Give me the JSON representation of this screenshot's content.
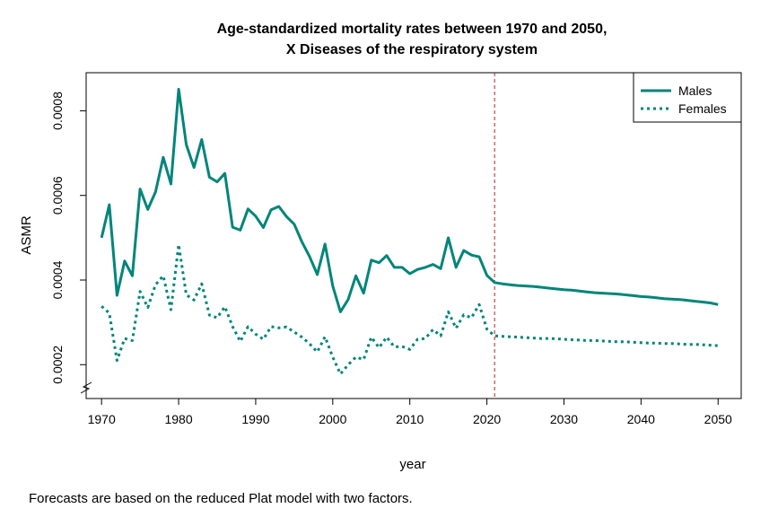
{
  "chart_data": {
    "type": "line",
    "title_line1": "Age-standardized mortality rates between 1970 and 2050,",
    "title_line2": "X Diseases of the respiratory system",
    "xlabel": "year",
    "ylabel": "ASMR",
    "xlim": [
      1968,
      2053
    ],
    "ylim": [
      0.00012,
      0.00089
    ],
    "x_ticks": [
      1970,
      1980,
      1990,
      2000,
      2010,
      2020,
      2030,
      2040,
      2050
    ],
    "y_ticks": [
      0.0002,
      0.0004,
      0.0006,
      0.0008
    ],
    "y_tick_labels": [
      "0.0002",
      "0.0004",
      "0.0006",
      "0.0008"
    ],
    "axis_break": true,
    "forecast_start_line": 2021,
    "legend_position": "top-right",
    "series": [
      {
        "name": "Males",
        "style": "solid",
        "color": "#00857a",
        "x": [
          1970,
          1971,
          1972,
          1973,
          1974,
          1975,
          1976,
          1977,
          1978,
          1979,
          1980,
          1981,
          1982,
          1983,
          1984,
          1985,
          1986,
          1987,
          1988,
          1989,
          1990,
          1991,
          1992,
          1993,
          1994,
          1995,
          1996,
          1997,
          1998,
          1999,
          2000,
          2001,
          2002,
          2003,
          2004,
          2005,
          2006,
          2007,
          2008,
          2009,
          2010,
          2011,
          2012,
          2013,
          2014,
          2015,
          2016,
          2017,
          2018,
          2019,
          2020,
          2021,
          2022,
          2023,
          2024,
          2025,
          2026,
          2027,
          2028,
          2029,
          2030,
          2031,
          2032,
          2033,
          2034,
          2035,
          2036,
          2037,
          2038,
          2039,
          2040,
          2041,
          2042,
          2043,
          2044,
          2045,
          2046,
          2047,
          2048,
          2049,
          2050
        ],
        "values": [
          0.0005,
          0.000578,
          0.000364,
          0.000445,
          0.00041,
          0.000615,
          0.000567,
          0.000608,
          0.00069,
          0.000627,
          0.000851,
          0.00072,
          0.000666,
          0.000732,
          0.000643,
          0.000632,
          0.000652,
          0.000525,
          0.000518,
          0.000568,
          0.000551,
          0.000524,
          0.000566,
          0.000574,
          0.00055,
          0.000532,
          0.00049,
          0.000455,
          0.000413,
          0.000485,
          0.000386,
          0.000325,
          0.000354,
          0.00041,
          0.000369,
          0.000447,
          0.000441,
          0.000458,
          0.00043,
          0.00043,
          0.000415,
          0.000425,
          0.00043,
          0.000437,
          0.000427,
          0.0005,
          0.00043,
          0.00047,
          0.000459,
          0.000455,
          0.000411,
          0.000394,
          0.000391,
          0.000389,
          0.000387,
          0.000386,
          0.000385,
          0.000383,
          0.000381,
          0.000379,
          0.000377,
          0.000376,
          0.000374,
          0.000372,
          0.00037,
          0.000369,
          0.000368,
          0.000367,
          0.000365,
          0.000363,
          0.000361,
          0.00036,
          0.000358,
          0.000356,
          0.000355,
          0.000354,
          0.000352,
          0.00035,
          0.000348,
          0.000346,
          0.000342
        ]
      },
      {
        "name": "Females",
        "style": "dotted",
        "color": "#00857a",
        "x": [
          1970,
          1971,
          1972,
          1973,
          1974,
          1975,
          1976,
          1977,
          1978,
          1979,
          1980,
          1981,
          1982,
          1983,
          1984,
          1985,
          1986,
          1987,
          1988,
          1989,
          1990,
          1991,
          1992,
          1993,
          1994,
          1995,
          1996,
          1997,
          1998,
          1999,
          2000,
          2001,
          2002,
          2003,
          2004,
          2005,
          2006,
          2007,
          2008,
          2009,
          2010,
          2011,
          2012,
          2013,
          2014,
          2015,
          2016,
          2017,
          2018,
          2019,
          2020,
          2021,
          2022,
          2023,
          2024,
          2025,
          2026,
          2027,
          2028,
          2029,
          2030,
          2031,
          2032,
          2033,
          2034,
          2035,
          2036,
          2037,
          2038,
          2039,
          2040,
          2041,
          2042,
          2043,
          2044,
          2045,
          2046,
          2047,
          2048,
          2049,
          2050
        ],
        "values": [
          0.000338,
          0.000322,
          0.00021,
          0.000262,
          0.000257,
          0.000373,
          0.000335,
          0.000389,
          0.00041,
          0.00033,
          0.000484,
          0.000365,
          0.000353,
          0.000391,
          0.000317,
          0.000311,
          0.000337,
          0.00029,
          0.000255,
          0.00029,
          0.000272,
          0.00026,
          0.00029,
          0.000287,
          0.000289,
          0.000277,
          0.000265,
          0.000249,
          0.00023,
          0.000266,
          0.000218,
          0.000178,
          0.0002,
          0.000218,
          0.000212,
          0.000265,
          0.00024,
          0.000265,
          0.000242,
          0.000243,
          0.000236,
          0.00026,
          0.000262,
          0.000283,
          0.000268,
          0.000325,
          0.000286,
          0.000318,
          0.000311,
          0.000342,
          0.000284,
          0.000268,
          0.000267,
          0.000266,
          0.000265,
          0.000264,
          0.000263,
          0.000262,
          0.000262,
          0.000261,
          0.00026,
          0.000259,
          0.000258,
          0.000257,
          0.000257,
          0.000256,
          0.000255,
          0.000254,
          0.000254,
          0.000253,
          0.000252,
          0.000251,
          0.000251,
          0.00025,
          0.00025,
          0.000249,
          0.000248,
          0.000248,
          0.000247,
          0.000246,
          0.000245
        ]
      }
    ]
  },
  "caption": "Forecasts are based on the reduced Plat model with two factors.",
  "colors": {
    "series": "#00857a",
    "forecast_line": "#b22222"
  }
}
